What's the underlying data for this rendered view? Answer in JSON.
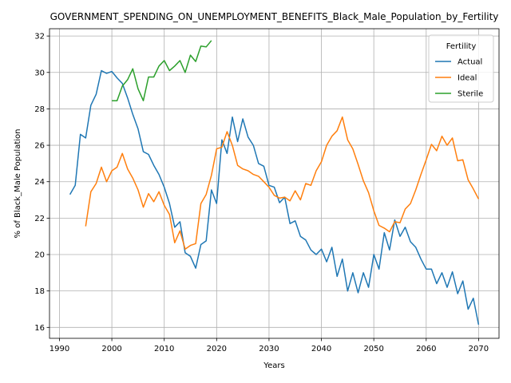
{
  "chart_data": {
    "type": "line",
    "title": "GOVERNMENT_SPENDING_ON_UNEMPLOYMENT_BENEFITS_Black_Male_Population_by_Fertility",
    "xlabel": "Years",
    "ylabel": "% of Black_Male Population",
    "xlim": [
      1988.1,
      2073.9
    ],
    "ylim": [
      15.4,
      32.4
    ],
    "xticks": [
      1990,
      2000,
      2010,
      2020,
      2030,
      2040,
      2050,
      2060,
      2070
    ],
    "yticks": [
      16,
      18,
      20,
      22,
      24,
      26,
      28,
      30,
      32
    ],
    "grid": true,
    "legend": {
      "title": "Fertility",
      "position": "top-right"
    },
    "series": [
      {
        "name": "Actual",
        "color": "#1f77b4",
        "x_start": 1992,
        "values": [
          23.3,
          23.8,
          26.6,
          26.4,
          28.2,
          28.8,
          30.1,
          29.95,
          30.05,
          29.7,
          29.4,
          28.6,
          27.7,
          26.9,
          25.65,
          25.5,
          24.9,
          24.4,
          23.7,
          22.8,
          21.5,
          21.8,
          20.1,
          19.9,
          19.25,
          20.55,
          20.75,
          23.55,
          22.8,
          26.3,
          25.55,
          27.55,
          26.2,
          27.45,
          26.45,
          26.0,
          25.0,
          24.85,
          23.8,
          23.7,
          22.85,
          23.15,
          21.7,
          21.85,
          21.0,
          20.8,
          20.25,
          20.0,
          20.3,
          19.6,
          20.4,
          18.8,
          19.75,
          18.0,
          19.0,
          17.9,
          19.0,
          18.2,
          20.0,
          19.2,
          21.2,
          20.25,
          21.9,
          21.0,
          21.5,
          20.7,
          20.4,
          19.75,
          19.2,
          19.2,
          18.4,
          19.0,
          18.2,
          19.05,
          17.85,
          18.55,
          17.0,
          17.6,
          16.15
        ]
      },
      {
        "name": "Ideal",
        "color": "#ff7f0e",
        "x_start": 1995,
        "values": [
          21.55,
          23.45,
          23.9,
          24.8,
          24.0,
          24.6,
          24.8,
          25.55,
          24.7,
          24.2,
          23.55,
          22.6,
          23.35,
          22.9,
          23.45,
          22.7,
          22.2,
          20.65,
          21.3,
          20.3,
          20.5,
          20.6,
          22.8,
          23.3,
          24.35,
          25.8,
          25.9,
          26.75,
          26.0,
          24.9,
          24.7,
          24.6,
          24.4,
          24.3,
          24.0,
          23.7,
          23.25,
          23.1,
          23.15,
          22.95,
          23.5,
          23.0,
          23.9,
          23.8,
          24.6,
          25.1,
          26.0,
          26.5,
          26.8,
          27.55,
          26.3,
          25.8,
          24.95,
          24.05,
          23.4,
          22.4,
          21.6,
          21.45,
          21.25,
          21.8,
          21.75,
          22.5,
          22.8,
          23.55,
          24.4,
          25.2,
          26.05,
          25.7,
          26.5,
          26.0,
          26.4,
          25.15,
          25.2,
          24.1,
          23.6,
          23.05
        ]
      },
      {
        "name": "Sterile",
        "color": "#2ca02c",
        "x_start": 2000,
        "values": [
          28.45,
          28.45,
          29.25,
          29.6,
          30.2,
          29.1,
          28.45,
          29.75,
          29.75,
          30.35,
          30.65,
          30.1,
          30.35,
          30.65,
          30.0,
          30.95,
          30.6,
          31.45,
          31.4,
          31.75
        ]
      }
    ]
  }
}
